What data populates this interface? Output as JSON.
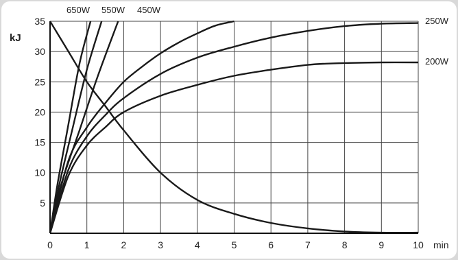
{
  "chart_data": {
    "type": "line",
    "ylabel": "kJ",
    "xlabel": "min",
    "xlim": [
      0,
      10
    ],
    "ylim": [
      0,
      35
    ],
    "x_ticks": [
      "0",
      "1",
      "2",
      "3",
      "4",
      "5",
      "6",
      "7",
      "8",
      "9",
      "10"
    ],
    "y_ticks": [
      "5",
      "10",
      "15",
      "20",
      "25",
      "30",
      "35"
    ],
    "grid": true,
    "series": [
      {
        "name": "650W",
        "x": [
          0,
          0.2,
          0.5,
          0.8,
          1.1
        ],
        "y": [
          0,
          8,
          18,
          28,
          35
        ]
      },
      {
        "name": "550W",
        "x": [
          0,
          0.25,
          0.6,
          1.0,
          1.4
        ],
        "y": [
          0,
          8,
          17,
          27,
          35
        ]
      },
      {
        "name": "450W",
        "x": [
          0,
          0.3,
          0.8,
          1.3,
          1.85
        ],
        "y": [
          0,
          8,
          17,
          26,
          35
        ]
      },
      {
        "name": "",
        "x": [
          0,
          0.5,
          1,
          1.5,
          2,
          2.5,
          3,
          3.5,
          4,
          4.5,
          5
        ],
        "y": [
          0,
          12,
          17.5,
          21.5,
          25,
          27.5,
          29.7,
          31.5,
          33,
          34.3,
          35
        ]
      },
      {
        "name": "250W",
        "x": [
          0,
          0.5,
          1,
          1.5,
          2,
          3,
          4,
          5,
          6,
          7,
          8,
          9,
          10
        ],
        "y": [
          0,
          10.5,
          16,
          19.5,
          22.3,
          26.3,
          29,
          30.8,
          32.3,
          33.4,
          34.2,
          34.6,
          34.7
        ]
      },
      {
        "name": "200W",
        "x": [
          0,
          0.5,
          1,
          1.5,
          2,
          3,
          4,
          5,
          6,
          7,
          7.5,
          8,
          9,
          10
        ],
        "y": [
          0,
          9.5,
          14.5,
          17.5,
          20,
          22.7,
          24.5,
          26,
          27,
          27.8,
          28,
          28.1,
          28.2,
          28.2
        ]
      },
      {
        "name": "",
        "x": [
          0,
          0.5,
          1,
          1.5,
          2,
          3,
          4,
          5,
          6,
          7,
          8,
          9,
          10
        ],
        "y": [
          35,
          30,
          25,
          21,
          17,
          10,
          5.5,
          3.2,
          1.7,
          0.8,
          0.3,
          0.1,
          0.1
        ]
      }
    ],
    "series_labels": [
      {
        "text": "650W",
        "pos": "top"
      },
      {
        "text": "550W",
        "pos": "top"
      },
      {
        "text": "450W",
        "pos": "top"
      },
      {
        "text": "250W",
        "pos": "right"
      },
      {
        "text": "200W",
        "pos": "right"
      }
    ]
  }
}
